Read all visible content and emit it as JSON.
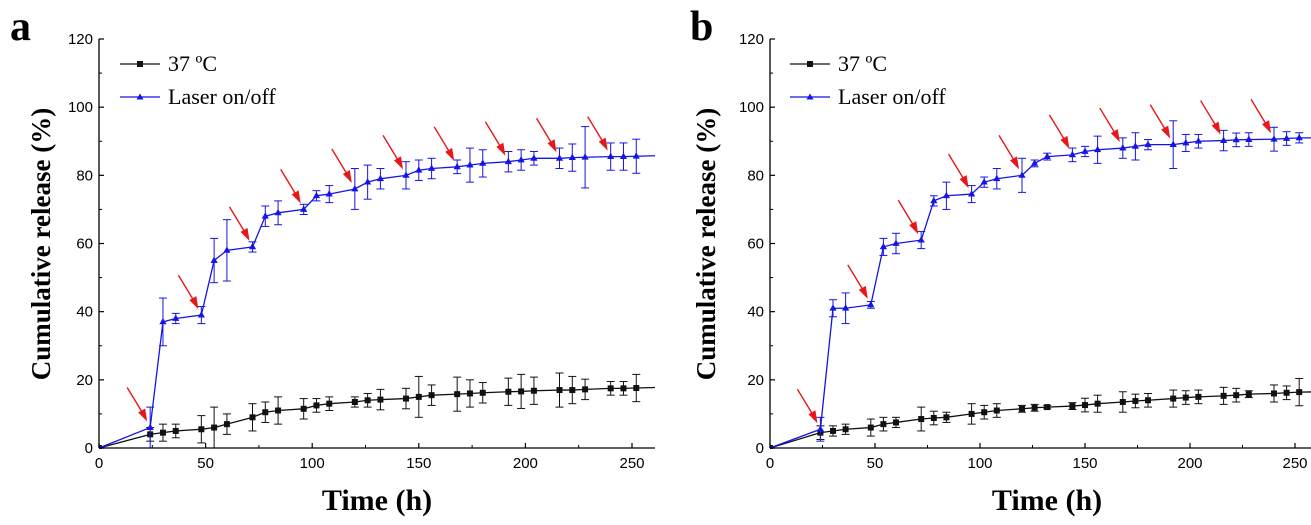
{
  "panels": [
    {
      "label": "a"
    },
    {
      "label": "b"
    }
  ],
  "colors": {
    "arrow": "#e8171a",
    "laser": "#1515e6",
    "control": "#111111"
  },
  "chart_data": [
    {
      "type": "line",
      "panel": "a",
      "xlabel": "Time (h)",
      "ylabel": "Cumulative release (%)",
      "xlim": [
        0,
        265
      ],
      "ylim": [
        0,
        120
      ],
      "xticks": [
        0,
        50,
        100,
        150,
        200,
        250
      ],
      "yticks": [
        0,
        20,
        40,
        60,
        80,
        100,
        120
      ],
      "legend_position": "top-left",
      "series": [
        {
          "name": "37 ºC",
          "color": "#111111",
          "marker": "square",
          "x": [
            0,
            24,
            30,
            36,
            48,
            54,
            60,
            72,
            78,
            84,
            96,
            102,
            108,
            120,
            126,
            132,
            144,
            150,
            156,
            168,
            174,
            180,
            192,
            198,
            204,
            216,
            222,
            228,
            240,
            246,
            252,
            264
          ],
          "y": [
            0,
            4,
            4.5,
            5,
            5.5,
            6,
            7,
            9,
            10.5,
            11,
            11.5,
            12.5,
            13,
            13.5,
            14,
            14.2,
            14.5,
            15,
            15.5,
            15.8,
            16,
            16.2,
            16.5,
            16.6,
            16.8,
            17,
            17,
            17.2,
            17.5,
            17.5,
            17.6,
            17.8
          ],
          "err": [
            0,
            2,
            2.5,
            2,
            4,
            6,
            3,
            4,
            3,
            4,
            3,
            2,
            2,
            1.5,
            2,
            3,
            3,
            6,
            3,
            5,
            4,
            3,
            4,
            5,
            4,
            5,
            4,
            3,
            2,
            2,
            4,
            3
          ]
        },
        {
          "name": "Laser on/off",
          "color": "#1515e6",
          "marker": "triangle",
          "x": [
            0,
            24,
            30,
            36,
            48,
            54,
            60,
            72,
            78,
            84,
            96,
            102,
            108,
            120,
            126,
            132,
            144,
            150,
            156,
            168,
            174,
            180,
            192,
            198,
            204,
            216,
            222,
            228,
            240,
            246,
            252,
            264
          ],
          "y": [
            0,
            6,
            37,
            38,
            39,
            55,
            58,
            59,
            68,
            69,
            70,
            74,
            74.5,
            76,
            78,
            79,
            80,
            81.5,
            82,
            82.5,
            83,
            83.5,
            84,
            84.5,
            85,
            85,
            85.2,
            85.3,
            85.5,
            85.5,
            85.6,
            85.8
          ],
          "err": [
            0,
            6,
            7,
            1.5,
            2.5,
            6.5,
            9,
            1.5,
            3,
            3.5,
            1.5,
            1.5,
            2.5,
            6,
            5,
            3,
            4,
            3,
            3,
            2,
            5,
            4,
            3,
            3,
            2,
            3,
            4,
            9,
            4,
            4,
            5,
            3
          ]
        }
      ],
      "arrows_at_x": [
        24,
        48,
        72,
        96,
        120,
        144,
        168,
        192,
        216,
        240
      ]
    },
    {
      "type": "line",
      "panel": "b",
      "xlabel": "Time (h)",
      "ylabel": "Cumulative release (%)",
      "xlim": [
        0,
        265
      ],
      "ylim": [
        0,
        120
      ],
      "xticks": [
        0,
        50,
        100,
        150,
        200,
        250
      ],
      "yticks": [
        0,
        20,
        40,
        60,
        80,
        100,
        120
      ],
      "legend_position": "top-left",
      "series": [
        {
          "name": "37 ºC",
          "color": "#111111",
          "marker": "square",
          "x": [
            0,
            24,
            30,
            36,
            48,
            54,
            60,
            72,
            78,
            84,
            96,
            102,
            108,
            120,
            126,
            132,
            144,
            150,
            156,
            168,
            174,
            180,
            192,
            198,
            204,
            216,
            222,
            228,
            240,
            246,
            252,
            264
          ],
          "y": [
            0,
            4.5,
            5,
            5.5,
            6,
            7,
            7.5,
            8.5,
            8.8,
            9,
            10,
            10.5,
            11,
            11.5,
            11.8,
            12,
            12.3,
            12.6,
            13,
            13.5,
            13.8,
            14,
            14.5,
            14.8,
            15,
            15.3,
            15.5,
            15.8,
            16,
            16.2,
            16.4,
            16.5
          ],
          "err": [
            0,
            2,
            1.5,
            1.5,
            2.5,
            2,
            1.5,
            3.5,
            2,
            1.5,
            3,
            2,
            2,
            1,
            1,
            0.5,
            1,
            2,
            2.5,
            3,
            2,
            2,
            2.5,
            2,
            2,
            2.5,
            2,
            1,
            2.5,
            2,
            4,
            3
          ]
        },
        {
          "name": "Laser on/off",
          "color": "#1515e6",
          "marker": "triangle",
          "x": [
            0,
            24,
            30,
            36,
            48,
            54,
            60,
            72,
            78,
            84,
            96,
            102,
            108,
            120,
            126,
            132,
            144,
            150,
            156,
            168,
            174,
            180,
            192,
            198,
            204,
            216,
            222,
            228,
            240,
            246,
            252,
            264
          ],
          "y": [
            0,
            5.5,
            41,
            41,
            42,
            59,
            60,
            61,
            72.5,
            74,
            74.5,
            78,
            79,
            80,
            83.5,
            85.5,
            86,
            87,
            87.5,
            88,
            88.5,
            89,
            89,
            89.5,
            90,
            90.2,
            90.4,
            90.5,
            90.6,
            90.8,
            91,
            91
          ],
          "err": [
            0,
            3.5,
            2.5,
            4.5,
            1,
            2.5,
            3,
            2.5,
            1.5,
            4,
            2.5,
            1.5,
            3,
            5,
            1,
            1,
            2,
            1.5,
            4,
            3,
            4,
            1.5,
            7,
            2.5,
            2,
            3,
            2,
            2,
            3.5,
            2,
            1.5,
            1
          ]
        }
      ],
      "arrows_at_x": [
        24,
        48,
        72,
        96,
        120,
        144,
        168,
        192,
        216,
        240
      ]
    }
  ]
}
